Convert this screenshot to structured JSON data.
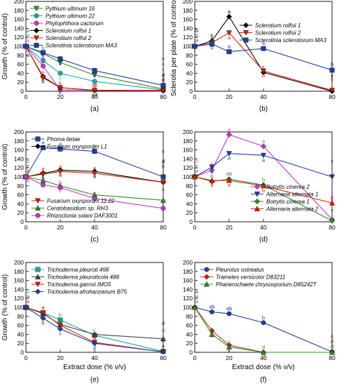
{
  "figure": {
    "shared_xlabel": "Extract dose (% v/v)"
  },
  "chart_data": [
    {
      "panel_label": "(a)",
      "type": "line",
      "ylabel": "Growth (% of control)",
      "xlabel": "",
      "ylim": [
        0,
        200
      ],
      "yticks": [
        0,
        20,
        40,
        60,
        80,
        100,
        120,
        140,
        160,
        180,
        200
      ],
      "xticks": [
        0,
        20,
        40,
        80
      ],
      "series": [
        {
          "name": "Pythium ultimum 16",
          "color": "#2e8b2e",
          "marker": "triangle-down",
          "x": [
            0,
            10,
            20,
            40,
            80
          ],
          "y": [
            100,
            84,
            64,
            36,
            5
          ],
          "letters": [
            "a",
            "b",
            "c",
            "d",
            "e"
          ]
        },
        {
          "name": "Pythium ultimum 22",
          "color": "#17a9a9",
          "marker": "circle",
          "x": [
            0,
            10,
            20,
            40,
            80
          ],
          "y": [
            100,
            68,
            40,
            22,
            3
          ],
          "letters": [
            "a",
            "b",
            "c",
            "d",
            "e"
          ]
        },
        {
          "name": "Phytophthora cactorum",
          "color": "#cc33cc",
          "marker": "circle",
          "x": [
            0,
            10,
            20,
            40,
            80
          ],
          "y": [
            100,
            56,
            3,
            2,
            2
          ],
          "letters": [
            "a",
            "b",
            "c",
            "c",
            "c"
          ]
        },
        {
          "name": "Sclerotium rolfsii 1",
          "color": "#000000",
          "marker": "diamond",
          "x": [
            0,
            10,
            20,
            40,
            80
          ],
          "y": [
            100,
            32,
            8,
            2,
            1
          ],
          "letters": [
            "a",
            "b",
            "c",
            "cd",
            "d"
          ]
        },
        {
          "name": "Sclerotium rolfsii 2",
          "color": "#cc2200",
          "marker": "triangle-down",
          "x": [
            0,
            10,
            20,
            40,
            80
          ],
          "y": [
            100,
            30,
            8,
            2,
            1
          ],
          "letters": [
            "a",
            "b",
            "c",
            "cd",
            "d"
          ]
        },
        {
          "name": "Sclerotinia sclerotiorum MA3",
          "color": "#1f3f9f",
          "marker": "square",
          "x": [
            0,
            10,
            20,
            40,
            80
          ],
          "y": [
            100,
            86,
            72,
            46,
            13
          ],
          "letters": [
            "a",
            "b",
            "c",
            "d",
            "e"
          ]
        }
      ]
    },
    {
      "panel_label": "(b)",
      "type": "line",
      "ylabel": "Sclerotia per plate (% of control)",
      "xlabel": "",
      "ylim": [
        0,
        200
      ],
      "yticks": [
        0,
        20,
        40,
        60,
        80,
        100,
        120,
        140,
        160,
        180,
        200
      ],
      "xticks": [
        0,
        20,
        40,
        80
      ],
      "series": [
        {
          "name": "Sclerotium rolfsii 1",
          "color": "#000000",
          "marker": "diamond",
          "x": [
            0,
            10,
            20,
            40,
            80
          ],
          "y": [
            100,
            112,
            166,
            42,
            0
          ],
          "letters": [
            "b",
            "b",
            "a",
            "c",
            "c"
          ]
        },
        {
          "name": "Sclerotium rolfsii 2",
          "color": "#cc2200",
          "marker": "triangle-down",
          "x": [
            0,
            10,
            20,
            40,
            80
          ],
          "y": [
            100,
            108,
            130,
            45,
            2
          ],
          "letters": [
            "b",
            "b",
            "a",
            "b",
            "c"
          ]
        },
        {
          "name": "Sclerotinia sclerotiorum MA3",
          "color": "#1f3f9f",
          "marker": "square",
          "x": [
            0,
            10,
            20,
            40,
            80
          ],
          "y": [
            100,
            105,
            88,
            95,
            47
          ],
          "letters": [
            "a",
            "a",
            "a",
            "a",
            "b"
          ]
        }
      ]
    },
    {
      "panel_label": "(c)",
      "type": "line",
      "ylabel": "Growth (% of control)",
      "xlabel": "",
      "ylim": [
        0,
        200
      ],
      "yticks": [
        0,
        20,
        40,
        60,
        80,
        100,
        120,
        140,
        160,
        180,
        200
      ],
      "xticks": [
        0,
        20,
        40,
        80
      ],
      "series": [
        {
          "name": "Phoma betae",
          "color": "#1f3f9f",
          "marker": "square",
          "x": [
            0,
            10,
            20,
            40,
            80
          ],
          "y": [
            100,
            165,
            162,
            157,
            100
          ],
          "letters": [
            "c",
            "a",
            "a",
            "b",
            "c"
          ]
        },
        {
          "name": "Fusarium oxysporum L1",
          "color": "#000000",
          "marker": "diamond",
          "x": [
            0,
            10,
            20,
            40,
            80
          ],
          "y": [
            100,
            108,
            115,
            112,
            88
          ],
          "letters": [
            "c",
            "b",
            "a",
            "a",
            "d"
          ]
        },
        {
          "name": "Fusarium oxysporum 11.22",
          "color": "#cc2200",
          "marker": "triangle-down",
          "x": [
            0,
            10,
            20,
            40,
            80
          ],
          "y": [
            100,
            106,
            112,
            108,
            88
          ],
          "letters": [
            "a",
            "a",
            "a",
            "a",
            "b"
          ]
        },
        {
          "name": "Ceratobasidium sp. RH3",
          "color": "#2e8b2e",
          "marker": "triangle-up",
          "x": [
            0,
            10,
            20,
            40,
            80
          ],
          "y": [
            100,
            92,
            80,
            60,
            48
          ],
          "letters": [
            "a",
            "b",
            "c",
            "d",
            "e"
          ]
        },
        {
          "name": "Rhizoctonia solani DAF3001",
          "color": "#cc33cc",
          "marker": "circle",
          "x": [
            0,
            10,
            20,
            40,
            80
          ],
          "y": [
            100,
            82,
            76,
            52,
            30
          ],
          "letters": [
            "a",
            "b",
            "b",
            "c",
            "e"
          ]
        }
      ]
    },
    {
      "panel_label": "(d)",
      "type": "line",
      "ylabel": "",
      "xlabel": "",
      "ylim": [
        0,
        200
      ],
      "yticks": [
        0,
        20,
        40,
        60,
        80,
        100,
        120,
        140,
        160,
        180,
        200
      ],
      "xticks": [
        0,
        20,
        40,
        80
      ],
      "series": [
        {
          "name": "Botrytis cinerea 2",
          "color": "#cc33cc",
          "marker": "diamond",
          "x": [
            0,
            10,
            20,
            40,
            80
          ],
          "y": [
            100,
            115,
            194,
            168,
            5
          ],
          "letters": [
            "c",
            "b",
            "a",
            "a",
            "e"
          ]
        },
        {
          "name": "Alternaria alternata 1",
          "color": "#1f3f9f",
          "marker": "triangle-down",
          "x": [
            0,
            10,
            20,
            40,
            80
          ],
          "y": [
            100,
            122,
            152,
            148,
            100
          ],
          "letters": [
            "c",
            "b",
            "a",
            "a",
            "c"
          ]
        },
        {
          "name": "Botrytis cinerea 1",
          "color": "#2e8b2e",
          "marker": "diamond",
          "x": [
            0,
            10,
            20,
            40,
            80
          ],
          "y": [
            100,
            90,
            95,
            82,
            2
          ],
          "letters": [
            "a",
            "b",
            "ab",
            "b",
            "c"
          ]
        },
        {
          "name": "Alternaria alternata 2",
          "color": "#cc2200",
          "marker": "triangle-up",
          "x": [
            0,
            10,
            20,
            40,
            80
          ],
          "y": [
            100,
            92,
            92,
            80,
            42
          ],
          "letters": [
            "a",
            "a",
            "a",
            "b",
            "c"
          ]
        }
      ]
    },
    {
      "panel_label": "(e)",
      "type": "line",
      "ylabel": "Growth (% of control)",
      "xlabel": "Extract dose (% v/v)",
      "ylim": [
        0,
        200
      ],
      "yticks": [
        0,
        20,
        40,
        60,
        80,
        100,
        120,
        140,
        160,
        180,
        200
      ],
      "xticks": [
        0,
        20,
        40,
        80
      ],
      "series": [
        {
          "name": "Trichoderma pleuroti 498",
          "color": "#17a9a9",
          "marker": "square",
          "x": [
            0,
            10,
            20,
            40,
            80
          ],
          "y": [
            100,
            88,
            72,
            38,
            2
          ],
          "letters": [
            "a",
            "a",
            "b",
            "c",
            "d"
          ]
        },
        {
          "name": "Trichoderma pleuroticola 488",
          "color": "#444444",
          "marker": "triangle-up",
          "x": [
            0,
            10,
            20,
            40,
            80
          ],
          "y": [
            100,
            86,
            62,
            40,
            30
          ],
          "letters": [
            "a",
            "b",
            "c",
            "d",
            "d"
          ]
        },
        {
          "name": "Trichoderma gamsii IMO5",
          "color": "#cc2200",
          "marker": "triangle-down",
          "x": [
            0,
            10,
            20,
            40,
            80
          ],
          "y": [
            100,
            88,
            60,
            22,
            1
          ],
          "letters": [
            "a",
            "a",
            "b",
            "c",
            "e"
          ]
        },
        {
          "name": "Trichoderma afroharzianum B75",
          "color": "#1f3f9f",
          "marker": "diamond",
          "x": [
            0,
            10,
            20,
            40,
            80
          ],
          "y": [
            100,
            76,
            52,
            20,
            1
          ],
          "letters": [
            "a",
            "b",
            "c",
            "d",
            "e"
          ]
        }
      ]
    },
    {
      "panel_label": "(f)",
      "type": "line",
      "ylabel": "",
      "xlabel": "Extract dose (% v/v)",
      "ylim": [
        0,
        200
      ],
      "yticks": [
        0,
        20,
        40,
        60,
        80,
        100,
        120,
        140,
        160,
        180,
        200
      ],
      "xticks": [
        0,
        20,
        40,
        80
      ],
      "series": [
        {
          "name": "Pleurotus ostreatus",
          "color": "#1f3f9f",
          "marker": "circle",
          "x": [
            0,
            10,
            20,
            40,
            80
          ],
          "y": [
            100,
            90,
            86,
            66,
            1
          ],
          "letters": [
            "a",
            "ab",
            "ab",
            "b",
            "c"
          ]
        },
        {
          "name": "Trametes versicolor D83211",
          "color": "#cc2200",
          "marker": "diamond",
          "x": [
            0,
            10,
            20,
            40,
            80
          ],
          "y": [
            100,
            48,
            16,
            0,
            0
          ],
          "letters": [
            "a",
            "b",
            "c",
            "d",
            "d"
          ]
        },
        {
          "name": "Phanerochaete chrysosporium D85242T",
          "color": "#2e8b2e",
          "marker": "triangle-up",
          "x": [
            0,
            10,
            20,
            40,
            80
          ],
          "y": [
            100,
            40,
            12,
            0,
            0
          ],
          "letters": [
            "a",
            "b",
            "c",
            "d",
            "d"
          ]
        }
      ]
    }
  ]
}
